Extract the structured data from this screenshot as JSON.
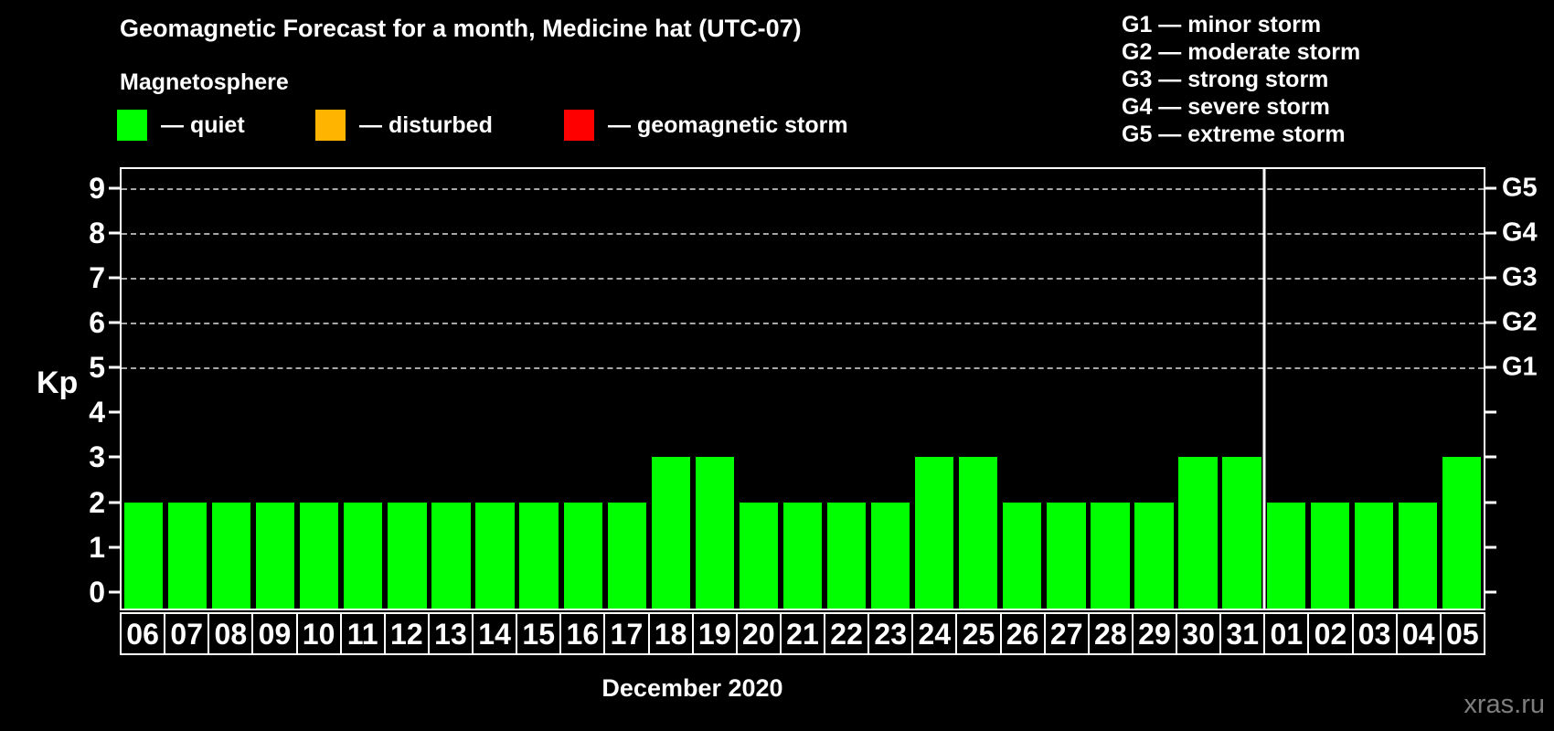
{
  "title": "Geomagnetic Forecast for a month, Medicine hat (UTC-07)",
  "subtitle": "Magnetosphere",
  "legend": [
    {
      "name": "quiet",
      "label": "— quiet",
      "color": "#00ff00"
    },
    {
      "name": "disturbed",
      "label": "— disturbed",
      "color": "#ffb400"
    },
    {
      "name": "geomagnetic-storm",
      "label": "— geomagnetic storm",
      "color": "#ff0000"
    }
  ],
  "g_scale_legend": [
    {
      "label": "G1 — minor storm"
    },
    {
      "label": "G2 — moderate storm"
    },
    {
      "label": "G3 — strong storm"
    },
    {
      "label": "G4 — severe storm"
    },
    {
      "label": "G5 — extreme storm"
    }
  ],
  "chart_data": {
    "type": "bar",
    "title": "Geomagnetic Forecast for a month, Medicine hat (UTC-07)",
    "ylabel": "Kp",
    "xlabel": "December 2020",
    "categories": [
      "06",
      "07",
      "08",
      "09",
      "10",
      "11",
      "12",
      "13",
      "14",
      "15",
      "16",
      "17",
      "18",
      "19",
      "20",
      "21",
      "22",
      "23",
      "24",
      "25",
      "26",
      "27",
      "28",
      "29",
      "30",
      "31",
      "01",
      "02",
      "03",
      "04",
      "05"
    ],
    "values": [
      2,
      2,
      2,
      2,
      2,
      2,
      2,
      2,
      2,
      2,
      2,
      2,
      3,
      3,
      2,
      2,
      2,
      2,
      3,
      3,
      2,
      2,
      2,
      2,
      3,
      3,
      2,
      2,
      2,
      2,
      3
    ],
    "bar_color": "#00ff00",
    "ylim": [
      -0.37,
      9.42
    ],
    "yticks": [
      0,
      1,
      2,
      3,
      4,
      5,
      6,
      7,
      8,
      9
    ],
    "gridlines": [
      5,
      6,
      7,
      8,
      9
    ],
    "grid_style": "dashed",
    "right_axis": [
      {
        "kp": 5,
        "label": "G1"
      },
      {
        "kp": 6,
        "label": "G2"
      },
      {
        "kp": 7,
        "label": "G3"
      },
      {
        "kp": 8,
        "label": "G4"
      },
      {
        "kp": 9,
        "label": "G5"
      }
    ],
    "month_separator_after": "31",
    "legend_position": "top-left"
  },
  "footer": {
    "month_label": "December 2020",
    "watermark": "xras.ru"
  }
}
